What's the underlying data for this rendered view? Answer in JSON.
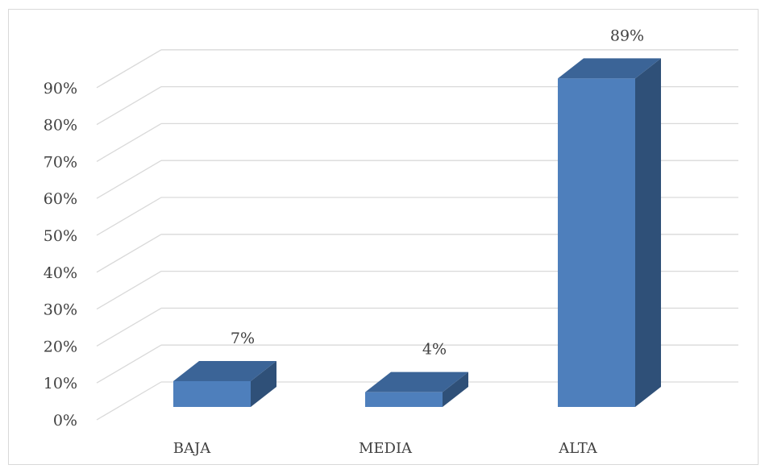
{
  "chart_data": {
    "type": "bar",
    "categories": [
      "BAJA",
      "MEDIA",
      "ALTA"
    ],
    "values": [
      7,
      4,
      89
    ],
    "data_labels": [
      "7%",
      "4%",
      "89%"
    ],
    "ylim": [
      0,
      90
    ],
    "y_ticks": [
      "0%",
      "10%",
      "20%",
      "30%",
      "40%",
      "50%",
      "60%",
      "70%",
      "80%",
      "90%"
    ],
    "grid": true,
    "style": "3d-column",
    "colors": {
      "bar_front": "#4e7fbc",
      "bar_side": "#2f5078",
      "bar_top": "#3b6497",
      "gridline": "#d9d9d9",
      "text": "#404040"
    }
  }
}
